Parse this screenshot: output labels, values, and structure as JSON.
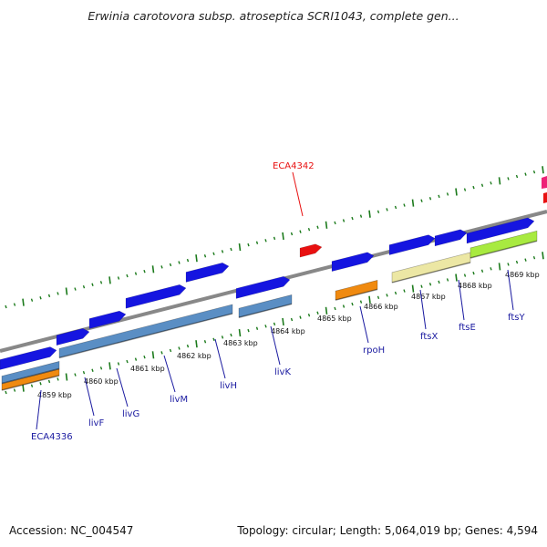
{
  "title": "Erwinia carotovora subsp. atroseptica SCRI1043, complete gen...",
  "footer": {
    "accession": "Accession: NC_004547",
    "stats": "Topology: circular; Length: 5,064,019 bp; Genes: 4,594"
  },
  "colors": {
    "gene_forward": "#1515e0",
    "gene_highlight": "#e81010",
    "cds_steel": "#5a8ec4",
    "cds_orange": "#f08a10",
    "cds_khaki": "#ece7a4",
    "cds_lime": "#a8ea40",
    "backbone": "#888888",
    "ticks": "#1b7a1b",
    "gene_label": "#1a1aa0",
    "edge_pink": "#ee2277"
  },
  "ruler": {
    "unit": "kbp",
    "labels": [
      "4859 kbp",
      "4860 kbp",
      "4861 kbp",
      "4862 kbp",
      "4863 kbp",
      "4864 kbp",
      "4865 kbp",
      "4866 kbp",
      "4867 kbp",
      "4868 kbp",
      "4869 kbp"
    ]
  },
  "genes": [
    {
      "name": "ECA4336",
      "highlight": false
    },
    {
      "name": "livF",
      "highlight": false
    },
    {
      "name": "livG",
      "highlight": false
    },
    {
      "name": "livM",
      "highlight": false
    },
    {
      "name": "livH",
      "highlight": false
    },
    {
      "name": "livK",
      "highlight": false
    },
    {
      "name": "ECA4342",
      "highlight": true
    },
    {
      "name": "rpoH",
      "highlight": false
    },
    {
      "name": "ftsX",
      "highlight": false
    },
    {
      "name": "ftsE",
      "highlight": false
    },
    {
      "name": "ftsY",
      "highlight": false
    }
  ]
}
